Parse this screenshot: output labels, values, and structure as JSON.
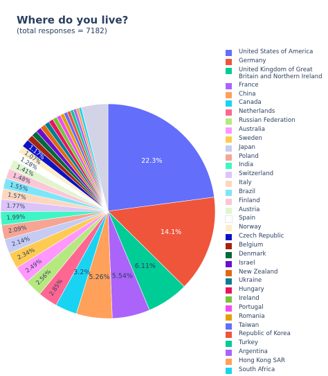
{
  "chart_data": {
    "type": "pie",
    "title": "Where do you live?",
    "subtitle": "(total responses = 7182)",
    "legend_position": "right",
    "slices": [
      {
        "label": "United States of America",
        "value": 22.3,
        "color": "#636efa",
        "text": "22.3%"
      },
      {
        "label": "Germany",
        "value": 14.1,
        "color": "#EF553B",
        "text": "14.1%"
      },
      {
        "label": "United Kingdom of Great Britain and Northern Ireland",
        "value": 6.11,
        "color": "#00cc96",
        "text": "6.11%"
      },
      {
        "label": "France",
        "value": 5.54,
        "color": "#ab63fa",
        "text": "5.54%"
      },
      {
        "label": "China",
        "value": 5.26,
        "color": "#FFA15A",
        "text": "5.26%"
      },
      {
        "label": "Canada",
        "value": 3.2,
        "color": "#19d3f3",
        "text": "3.2%"
      },
      {
        "label": "Netherlands",
        "value": 2.85,
        "color": "#FF6692",
        "text": "2.85%"
      },
      {
        "label": "Russian Federation",
        "value": 2.56,
        "color": "#B6E880",
        "text": "2.56%"
      },
      {
        "label": "Australia",
        "value": 2.49,
        "color": "#FF97FF",
        "text": "2.49%"
      },
      {
        "label": "Sweden",
        "value": 2.34,
        "color": "#FECB52",
        "text": "2.34%"
      },
      {
        "label": "Japan",
        "value": 2.14,
        "color": "#c6cbf3",
        "text": "2.14%"
      },
      {
        "label": "Poland",
        "value": 2.09,
        "color": "#f6a493",
        "text": "2.09%"
      },
      {
        "label": "India",
        "value": 1.99,
        "color": "#40f5c5",
        "text": "1.99%"
      },
      {
        "label": "Switzerland",
        "value": 1.77,
        "color": "#dcc4f8",
        "text": "1.77%"
      },
      {
        "label": "Italy",
        "value": 1.57,
        "color": "#fdd7bd",
        "text": "1.57%"
      },
      {
        "label": "Brazil",
        "value": 1.55,
        "color": "#7ee5f8",
        "text": "1.55%"
      },
      {
        "label": "Finland",
        "value": 1.48,
        "color": "#fdc6d6",
        "text": "1.48%"
      },
      {
        "label": "Austria",
        "value": 1.41,
        "color": "#e0f5ce",
        "text": "1.41%"
      },
      {
        "label": "Spain",
        "value": 1.28,
        "color": "#ffffff",
        "text": "1.28%"
      },
      {
        "label": "Norway",
        "value": 1.07,
        "color": "#fdedc7",
        "text": "1.07%"
      },
      {
        "label": "Czech Republic",
        "value": 1.17,
        "color": "#0b13c4",
        "text": "1.17%"
      },
      {
        "label": "Belgium",
        "value": 0.9,
        "color": "#a32411",
        "text": ""
      },
      {
        "label": "Denmark",
        "value": 0.84,
        "color": "#00693f",
        "text": ""
      },
      {
        "label": "Israel",
        "value": 0.8,
        "color": "#6a0fc9",
        "text": ""
      },
      {
        "label": "New Zealand",
        "value": 0.76,
        "color": "#e06912",
        "text": ""
      },
      {
        "label": "Ukraine",
        "value": 0.72,
        "color": "#067f93",
        "text": ""
      },
      {
        "label": "Hungary",
        "value": 0.68,
        "color": "#e8145d",
        "text": ""
      },
      {
        "label": "Ireland",
        "value": 0.64,
        "color": "#75c43a",
        "text": ""
      },
      {
        "label": "Portugal",
        "value": 0.6,
        "color": "#f04cf0",
        "text": ""
      },
      {
        "label": "Romania",
        "value": 0.56,
        "color": "#e3a005",
        "text": ""
      },
      {
        "label": "Taiwan",
        "value": 0.52,
        "color": "#636efa",
        "text": ""
      },
      {
        "label": "Republic of Korea",
        "value": 0.49,
        "color": "#EF553B",
        "text": ""
      },
      {
        "label": "Turkey",
        "value": 0.46,
        "color": "#00cc96",
        "text": ""
      },
      {
        "label": "Argentina",
        "value": 0.43,
        "color": "#ab63fa",
        "text": ""
      },
      {
        "label": "Hong Kong SAR",
        "value": 0.4,
        "color": "#FFA15A",
        "text": ""
      },
      {
        "label": "South Africa",
        "value": 0.38,
        "color": "#19d3f3",
        "text": ""
      },
      {
        "label": "",
        "value": 3.9,
        "color": "#d3d3e8",
        "text": ""
      }
    ]
  }
}
